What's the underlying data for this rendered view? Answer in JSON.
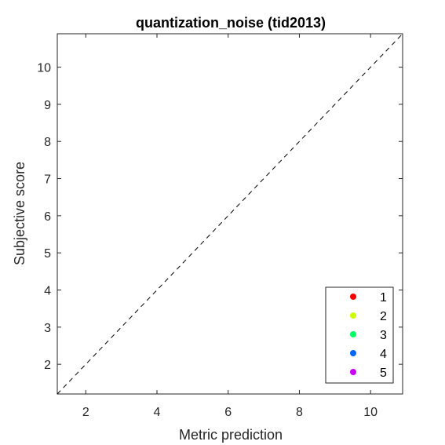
{
  "chart_data": {
    "type": "scatter",
    "title": "quantization_noise (tid2013)",
    "xlabel": "Metric prediction",
    "ylabel": "Subjective score",
    "xlim": [
      1.2,
      10.9
    ],
    "ylim": [
      1.2,
      10.9
    ],
    "xticks": [
      2,
      4,
      6,
      8,
      10
    ],
    "yticks": [
      2,
      3,
      4,
      5,
      6,
      7,
      8,
      9,
      10
    ],
    "reference_line": {
      "style": "dashed",
      "from": [
        1.2,
        1.2
      ],
      "to": [
        10.9,
        10.9
      ]
    },
    "legend": {
      "placement": "bottom-right"
    },
    "series": [
      {
        "name": "1",
        "color": "#ff0000",
        "points": []
      },
      {
        "name": "2",
        "color": "#ccff00",
        "points": []
      },
      {
        "name": "3",
        "color": "#00ff66",
        "points": []
      },
      {
        "name": "4",
        "color": "#0066ff",
        "points": []
      },
      {
        "name": "5",
        "color": "#cc00ff",
        "points": []
      }
    ]
  }
}
